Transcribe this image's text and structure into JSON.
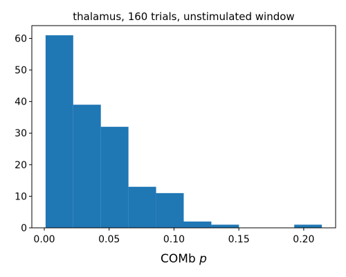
{
  "chart_data": {
    "type": "bar",
    "title": "thalamus, 160 trials, unstimulated window",
    "xlabel_text": "COMb ",
    "xlabel_var": "p",
    "ylabel": "",
    "bins": [
      {
        "x0": 0.001,
        "x1": 0.0223,
        "count": 61
      },
      {
        "x0": 0.0223,
        "x1": 0.0436,
        "count": 39
      },
      {
        "x0": 0.0436,
        "x1": 0.0649,
        "count": 32
      },
      {
        "x0": 0.0649,
        "x1": 0.0862,
        "count": 13
      },
      {
        "x0": 0.0862,
        "x1": 0.1075,
        "count": 11
      },
      {
        "x0": 0.1075,
        "x1": 0.1288,
        "count": 2
      },
      {
        "x0": 0.1288,
        "x1": 0.1501,
        "count": 1
      },
      {
        "x0": 0.1501,
        "x1": 0.1714,
        "count": 0
      },
      {
        "x0": 0.1714,
        "x1": 0.1927,
        "count": 0
      },
      {
        "x0": 0.1927,
        "x1": 0.214,
        "count": 1
      }
    ],
    "xlim": [
      -0.0096,
      0.2246
    ],
    "ylim": [
      0,
      64.05
    ],
    "xticks": [
      0.0,
      0.05,
      0.1,
      0.15,
      0.2
    ],
    "xtick_labels": [
      "0.00",
      "0.05",
      "0.10",
      "0.15",
      "0.20"
    ],
    "yticks": [
      0,
      10,
      20,
      30,
      40,
      50,
      60
    ],
    "ytick_labels": [
      "0",
      "10",
      "20",
      "30",
      "40",
      "50",
      "60"
    ],
    "bar_color": "#1f77b4",
    "grid": false
  }
}
